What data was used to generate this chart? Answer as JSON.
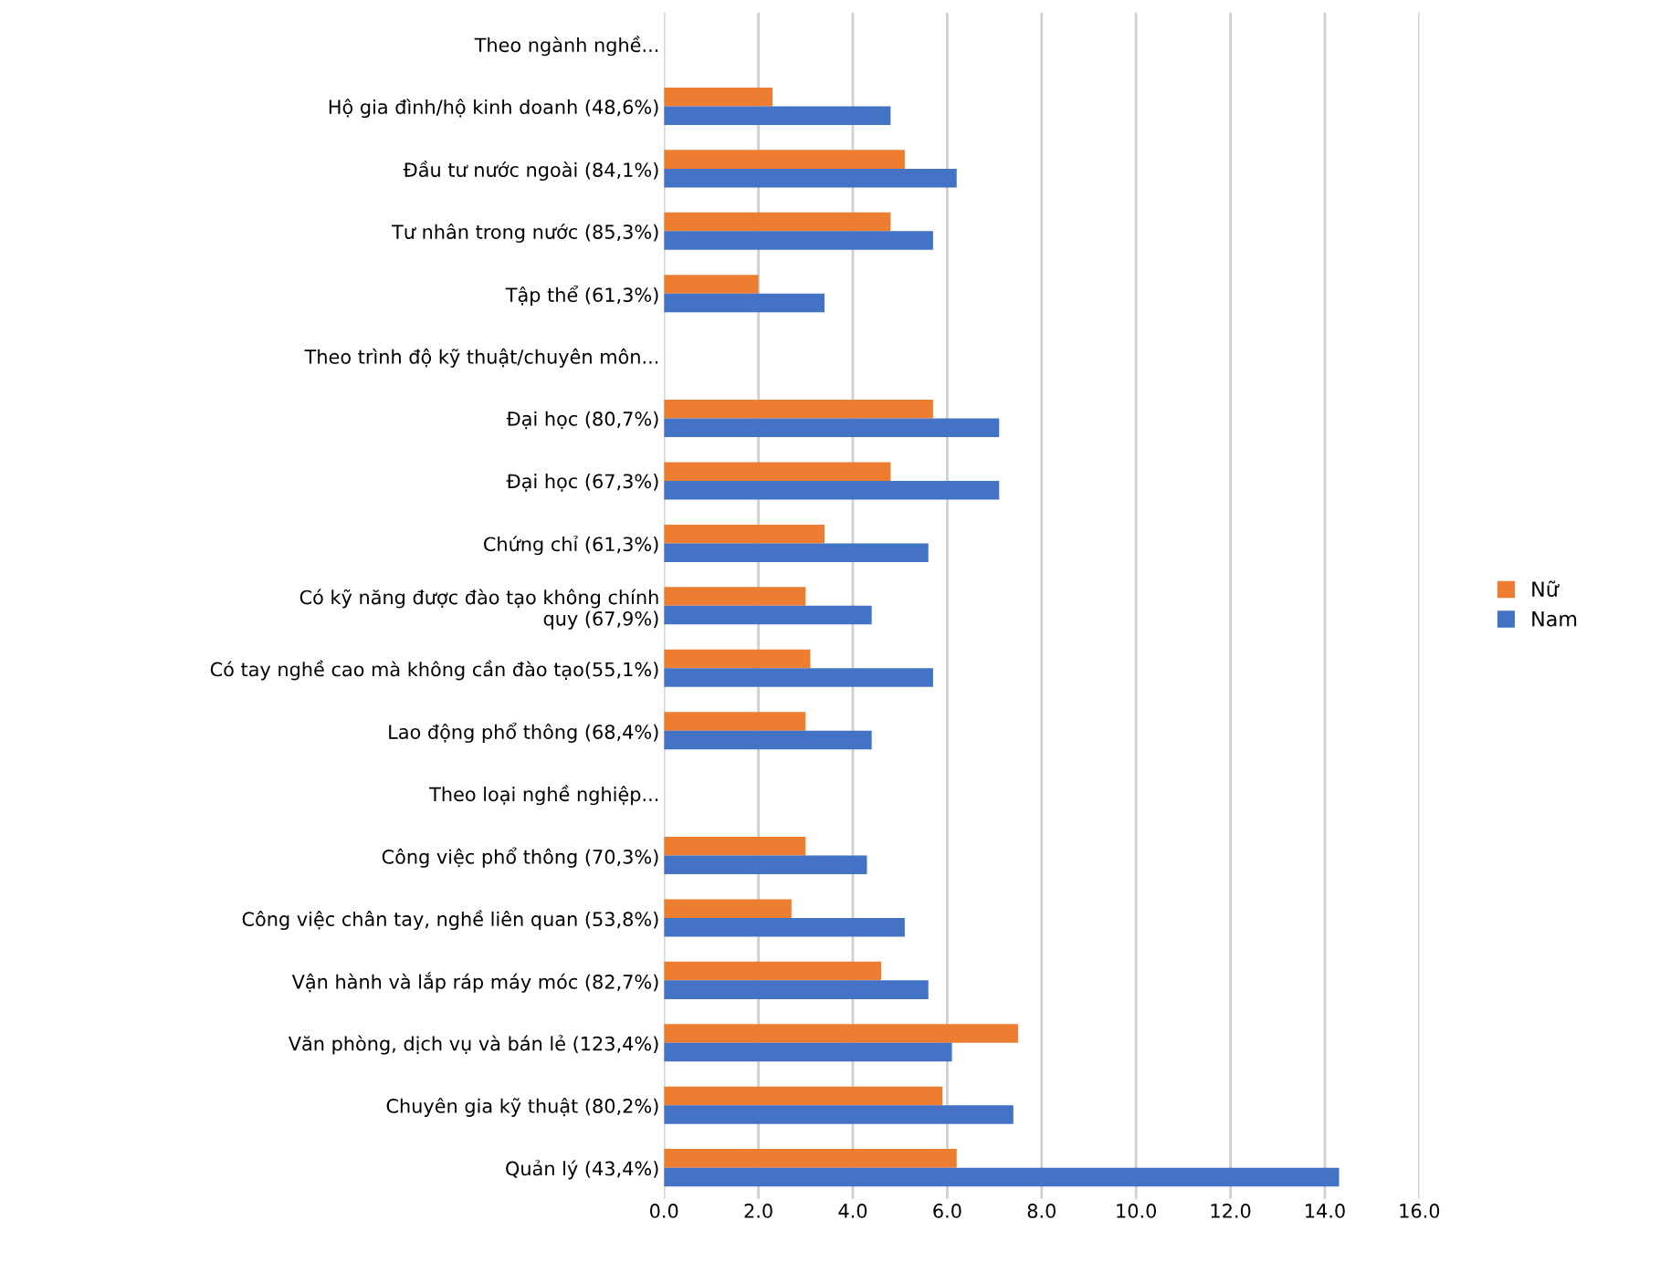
{
  "chart_data": {
    "type": "bar",
    "orientation": "horizontal",
    "categories": [
      "Theo ngành nghề...",
      "Hộ gia đình/hộ kinh doanh (48,6%)",
      "Đầu tư nước ngoài (84,1%)",
      "Tư nhân trong nước (85,3%)",
      "Tập thể (61,3%)",
      "Theo trình độ kỹ thuật/chuyên môn...",
      "Đại học (80,7%)",
      "Đại học (67,3%)",
      "Chứng chỉ (61,3%)",
      "Có kỹ năng được đào tạo không chính\nquy (67,9%)",
      "Có tay nghề cao mà không cần đào tạo(55,1%)",
      "Lao động phổ thông (68,4%)",
      "Theo loại nghề nghiệp...",
      "Công việc phổ thông (70,3%)",
      "Công việc chân tay, nghề liên quan (53,8%)",
      "Vận hành và lắp ráp máy móc (82,7%)",
      "Văn phòng, dịch vụ và bán lẻ (123,4%)",
      "Chuyên gia kỹ thuật (80,2%)",
      "Quản lý (43,4%)"
    ],
    "series": [
      {
        "name": "Nữ",
        "color": "#ed7d31",
        "values": [
          null,
          2.3,
          5.1,
          4.8,
          2.0,
          null,
          5.7,
          4.8,
          3.4,
          3.0,
          3.1,
          3.0,
          null,
          3.0,
          2.7,
          4.6,
          7.5,
          5.9,
          6.2
        ]
      },
      {
        "name": "Nam",
        "color": "#4472c4",
        "values": [
          null,
          4.8,
          6.2,
          5.7,
          3.4,
          null,
          7.1,
          7.1,
          5.6,
          4.4,
          5.7,
          4.4,
          null,
          4.3,
          5.1,
          5.6,
          6.1,
          7.4,
          14.3
        ]
      }
    ],
    "xlim": [
      0,
      16
    ],
    "xticks": [
      {
        "value": 0,
        "label": "0.0"
      },
      {
        "value": 2,
        "label": "2.0"
      },
      {
        "value": 4,
        "label": "4.0"
      },
      {
        "value": 6,
        "label": "6.0"
      },
      {
        "value": 8,
        "label": "8.0"
      },
      {
        "value": 10,
        "label": "10.0"
      },
      {
        "value": 12,
        "label": "12.0"
      },
      {
        "value": 14,
        "label": "14.0"
      },
      {
        "value": 16,
        "label": "16.0"
      }
    ],
    "grid": "x",
    "legend": "right"
  }
}
